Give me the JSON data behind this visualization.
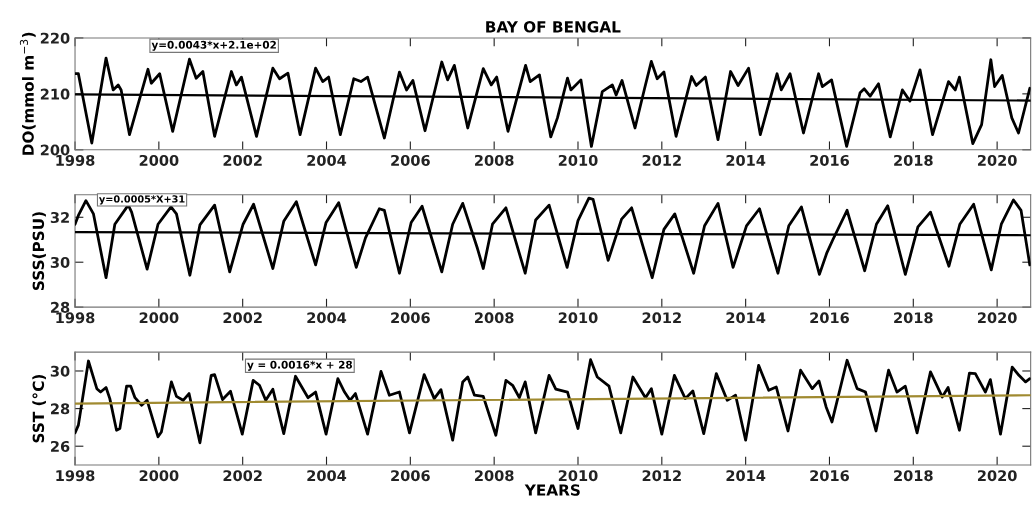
{
  "chart_data": [
    {
      "type": "line",
      "title": "BAY OF BENGAL",
      "ylabel": "DO(mmol m$^{−3}$)",
      "annotations": [
        "y=0.0043*x+2.1e+02"
      ],
      "xlim": [
        1998,
        2020.8
      ],
      "xticks": [
        1998,
        2000,
        2002,
        2004,
        2006,
        2008,
        2010,
        2012,
        2014,
        2016,
        2018,
        2020
      ],
      "ylim": [
        200,
        220
      ],
      "yticks": [
        200,
        210,
        220
      ],
      "grid": false,
      "legend": false,
      "marker": "none",
      "line_style": "solid",
      "series": [
        {
          "color": "#000000",
          "x": [
            1998.0,
            1998.08,
            1998.4,
            1998.74,
            1998.91,
            1999.03,
            1999.1,
            1999.3,
            1999.74,
            1999.82,
            2000.02,
            2000.33,
            2000.73,
            2000.89,
            2001.05,
            2001.33,
            2001.73,
            2001.85,
            2001.97,
            2002.33,
            2002.72,
            2002.88,
            2003.08,
            2003.37,
            2003.74,
            2003.91,
            2004.05,
            2004.33,
            2004.65,
            2004.82,
            2004.98,
            2005.38,
            2005.74,
            2005.91,
            2006.06,
            2006.35,
            2006.75,
            2006.89,
            2007.05,
            2007.37,
            2007.74,
            2007.93,
            2008.06,
            2008.33,
            2008.75,
            2008.86,
            2009.08,
            2009.35,
            2009.51,
            2009.75,
            2009.83,
            2010.07,
            2010.32,
            2010.58,
            2010.82,
            2010.91,
            2011.05,
            2011.36,
            2011.59,
            2011.75,
            2011.89,
            2012.05,
            2012.34,
            2012.71,
            2012.82,
            2013.04,
            2013.34,
            2013.64,
            2013.82,
            2014.07,
            2014.35,
            2014.75,
            2014.85,
            2015.06,
            2015.38,
            2015.74,
            2015.83,
            2016.05,
            2016.41,
            2016.73,
            2016.83,
            2016.97,
            2017.17,
            2017.45,
            2017.74,
            2017.92,
            2018.16,
            2018.46,
            2018.84,
            2019.0,
            2019.1,
            2019.42,
            2019.63,
            2019.85,
            2019.94,
            2020.12,
            2020.35,
            2020.51,
            2020.78
          ],
          "values": [
            213.6,
            213.6,
            201.2,
            216.4,
            210.7,
            211.6,
            210.7,
            202.7,
            214.4,
            211.9,
            213.6,
            203.3,
            216.2,
            212.8,
            214.0,
            202.4,
            214.0,
            211.6,
            213.0,
            202.4,
            214.6,
            212.7,
            213.7,
            202.7,
            214.6,
            212.2,
            213.0,
            202.7,
            212.7,
            212.2,
            213.0,
            202.1,
            213.9,
            210.7,
            212.4,
            203.4,
            215.7,
            212.5,
            215.1,
            203.9,
            214.5,
            211.6,
            213.0,
            203.3,
            215.1,
            212.2,
            213.4,
            202.3,
            205.7,
            212.8,
            210.7,
            212.5,
            200.6,
            210.4,
            211.6,
            209.8,
            212.4,
            203.9,
            211.0,
            215.8,
            212.7,
            213.9,
            202.4,
            213.1,
            211.5,
            213.0,
            201.8,
            214.0,
            211.5,
            214.6,
            202.7,
            213.6,
            210.7,
            213.6,
            203.0,
            213.6,
            211.3,
            212.5,
            200.6,
            210.2,
            210.9,
            209.6,
            211.8,
            202.3,
            210.7,
            208.7,
            214.3,
            202.7,
            212.2,
            210.7,
            213.0,
            201.1,
            204.5,
            216.1,
            211.3,
            213.3,
            205.7,
            203.0,
            211.0
          ]
        },
        {
          "color": "#000000",
          "x": [
            1998,
            2020.8
          ],
          "values": [
            209.9,
            208.8
          ]
        }
      ]
    },
    {
      "type": "line",
      "ylabel": "SSS(PSU)",
      "annotations": [
        "y=0.0005*X+31"
      ],
      "xlim": [
        1998,
        2020.8
      ],
      "xticks": [
        1998,
        2000,
        2002,
        2004,
        2006,
        2008,
        2010,
        2012,
        2014,
        2016,
        2018,
        2020
      ],
      "ylim": [
        28,
        33
      ],
      "yticks": [
        28,
        30,
        32
      ],
      "grid": false,
      "legend": false,
      "marker": "none",
      "line_style": "solid",
      "series": [
        {
          "color": "#000000",
          "x": [
            1998.0,
            1998.08,
            1998.26,
            1998.44,
            1998.74,
            1998.95,
            1999.27,
            1999.35,
            1999.72,
            1999.98,
            2000.29,
            2000.42,
            2000.74,
            2000.98,
            2001.33,
            2001.69,
            2002.01,
            2002.26,
            2002.72,
            2002.98,
            2003.28,
            2003.74,
            2003.99,
            2004.29,
            2004.71,
            2004.93,
            2005.26,
            2005.38,
            2005.74,
            2006.02,
            2006.28,
            2006.75,
            2007.01,
            2007.25,
            2007.6,
            2007.74,
            2007.96,
            2008.28,
            2008.74,
            2008.99,
            2009.31,
            2009.74,
            2010.0,
            2010.26,
            2010.36,
            2010.72,
            2011.04,
            2011.28,
            2011.77,
            2012.05,
            2012.31,
            2012.76,
            2013.02,
            2013.34,
            2013.7,
            2014.02,
            2014.33,
            2014.77,
            2015.03,
            2015.33,
            2015.76,
            2015.94,
            2016.08,
            2016.42,
            2016.84,
            2017.12,
            2017.39,
            2017.81,
            2018.11,
            2018.41,
            2018.85,
            2019.11,
            2019.44,
            2019.86,
            2020.1,
            2020.39,
            2020.57,
            2020.78
          ],
          "values": [
            31.69,
            32.08,
            32.74,
            32.15,
            29.31,
            31.69,
            32.54,
            32.23,
            29.69,
            31.69,
            32.46,
            32.15,
            29.42,
            31.66,
            32.54,
            29.57,
            31.69,
            32.58,
            29.72,
            31.82,
            32.69,
            29.88,
            31.77,
            32.65,
            29.77,
            31.08,
            32.38,
            32.31,
            29.51,
            31.77,
            32.49,
            29.57,
            31.69,
            32.62,
            30.62,
            29.72,
            31.69,
            32.42,
            29.51,
            31.88,
            32.54,
            29.77,
            31.85,
            32.85,
            32.8,
            30.08,
            31.92,
            32.42,
            29.31,
            31.46,
            32.15,
            29.51,
            31.62,
            32.62,
            29.77,
            31.62,
            32.38,
            29.51,
            31.62,
            32.46,
            29.46,
            30.43,
            31.0,
            32.31,
            29.62,
            31.69,
            32.51,
            29.46,
            31.57,
            32.23,
            29.82,
            31.69,
            32.58,
            29.66,
            31.69,
            32.77,
            32.31,
            29.88
          ]
        },
        {
          "color": "#000000",
          "x": [
            1998,
            2020.8
          ],
          "values": [
            31.34,
            31.2
          ]
        }
      ]
    },
    {
      "type": "line",
      "ylabel": "SST (°C)",
      "xlabel": "YEARS",
      "annotations": [
        "y = 0.0016*x + 28"
      ],
      "xlim": [
        1998,
        2020.8
      ],
      "xticks": [
        1998,
        2000,
        2002,
        2004,
        2006,
        2008,
        2010,
        2012,
        2014,
        2016,
        2018,
        2020
      ],
      "ylim": [
        25,
        31
      ],
      "yticks": [
        26,
        28,
        30
      ],
      "grid": false,
      "legend": false,
      "marker": "none",
      "line_style": "solid",
      "series": [
        {
          "color": "#000000",
          "x": [
            1998.0,
            1998.08,
            1998.32,
            1998.52,
            1998.61,
            1998.74,
            1998.83,
            1998.99,
            1999.07,
            1999.23,
            1999.33,
            1999.43,
            1999.59,
            1999.72,
            1999.98,
            2000.06,
            2000.3,
            2000.42,
            2000.58,
            2000.72,
            2000.98,
            2001.25,
            2001.33,
            2001.52,
            2001.71,
            2001.99,
            2002.25,
            2002.4,
            2002.55,
            2002.72,
            2002.98,
            2003.26,
            2003.56,
            2003.74,
            2003.99,
            2004.27,
            2004.43,
            2004.56,
            2004.69,
            2004.98,
            2005.3,
            2005.5,
            2005.74,
            2005.98,
            2006.33,
            2006.57,
            2006.73,
            2007.01,
            2007.25,
            2007.37,
            2007.53,
            2007.74,
            2008.04,
            2008.28,
            2008.44,
            2008.6,
            2008.74,
            2008.99,
            2009.31,
            2009.47,
            2009.75,
            2010.0,
            2010.3,
            2010.46,
            2010.74,
            2011.02,
            2011.31,
            2011.61,
            2011.75,
            2012.0,
            2012.3,
            2012.56,
            2012.74,
            2013.0,
            2013.3,
            2013.56,
            2013.76,
            2014.0,
            2014.31,
            2014.55,
            2014.73,
            2015.01,
            2015.31,
            2015.59,
            2015.75,
            2015.92,
            2016.06,
            2016.42,
            2016.66,
            2016.86,
            2017.11,
            2017.41,
            2017.61,
            2017.81,
            2018.09,
            2018.41,
            2018.69,
            2018.83,
            2019.1,
            2019.34,
            2019.48,
            2019.72,
            2019.84,
            2020.08,
            2020.36,
            2020.52,
            2020.68,
            2020.78
          ],
          "values": [
            26.71,
            27.12,
            30.53,
            29.06,
            28.88,
            29.12,
            28.53,
            26.85,
            26.94,
            29.19,
            29.19,
            28.58,
            28.18,
            28.44,
            26.5,
            26.76,
            29.42,
            28.65,
            28.44,
            28.8,
            26.18,
            29.77,
            29.81,
            28.48,
            28.92,
            26.64,
            29.5,
            29.24,
            28.44,
            29.03,
            26.67,
            29.72,
            28.58,
            28.88,
            26.64,
            29.59,
            28.88,
            28.44,
            28.8,
            26.64,
            29.98,
            28.71,
            28.88,
            26.71,
            29.81,
            28.53,
            29.01,
            26.32,
            29.42,
            29.68,
            28.71,
            28.65,
            26.58,
            29.5,
            29.24,
            28.58,
            29.42,
            26.71,
            29.77,
            29.03,
            28.88,
            26.94,
            30.6,
            29.68,
            29.19,
            26.71,
            29.68,
            28.58,
            29.06,
            26.64,
            29.77,
            28.53,
            28.94,
            26.67,
            29.86,
            28.44,
            28.71,
            26.32,
            30.3,
            28.97,
            29.15,
            26.81,
            30.04,
            29.06,
            29.47,
            28.09,
            27.29,
            30.57,
            29.06,
            28.88,
            26.81,
            30.04,
            28.88,
            29.19,
            26.71,
            29.95,
            28.62,
            29.12,
            26.85,
            29.89,
            29.86,
            28.88,
            29.54,
            26.64,
            30.21,
            29.77,
            29.42,
            29.59
          ]
        },
        {
          "color": "#a08a30",
          "x": [
            1998,
            2020.8
          ],
          "values": [
            28.27,
            28.71
          ]
        }
      ]
    }
  ]
}
